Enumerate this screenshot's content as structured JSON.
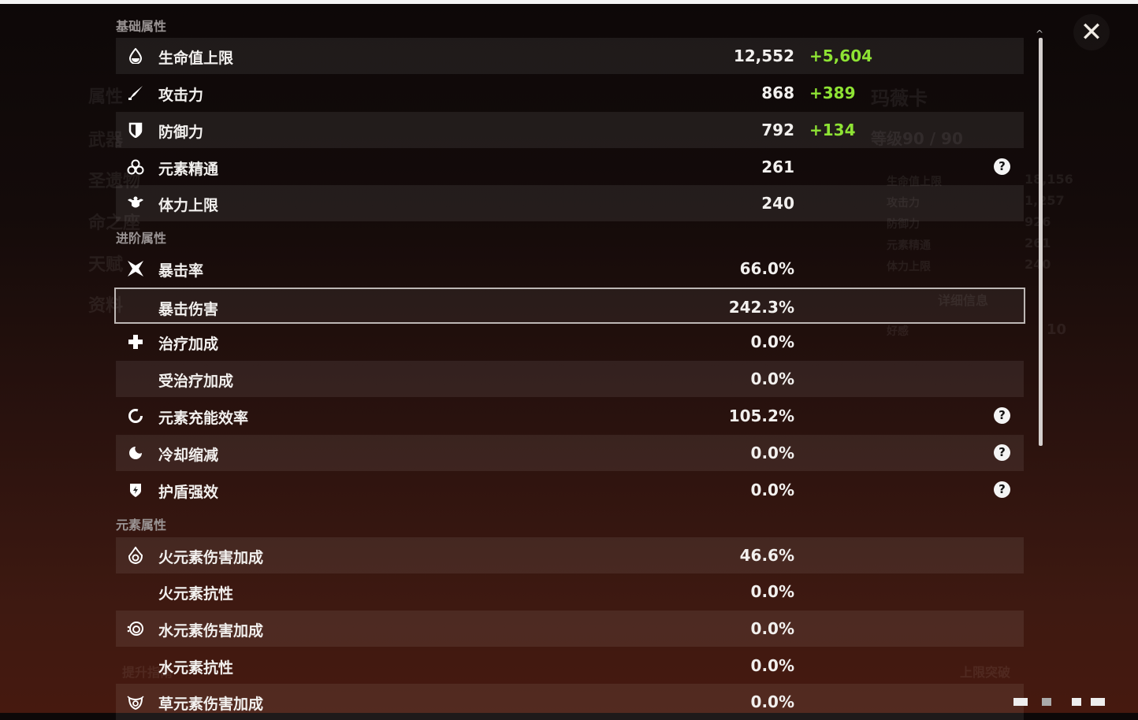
{
  "background": {
    "left_menu": [
      "属性",
      "武器",
      "圣遗物",
      "命之座",
      "天赋",
      "资料"
    ],
    "character_name": "玛薇卡",
    "level": "等级90 / 90",
    "side_stats": [
      {
        "label": "生命值上限",
        "value": "18,156"
      },
      {
        "label": "攻击力",
        "value": "1,257"
      },
      {
        "label": "防御力",
        "value": "926"
      },
      {
        "label": "元素精通",
        "value": "261"
      },
      {
        "label": "体力上限",
        "value": "240"
      }
    ],
    "details_button": "详细信息",
    "friendship": {
      "label": "好感",
      "value": "10"
    },
    "breakthrough_button": "上限突破",
    "improve_button": "提升指南"
  },
  "sections": [
    {
      "title": "基础属性",
      "rows": [
        {
          "icon": "hp-drop-icon",
          "label": "生命值上限",
          "value": "12,552",
          "bonus": "+5,604",
          "help": false
        },
        {
          "icon": "sword-icon",
          "label": "攻击力",
          "value": "868",
          "bonus": "+389",
          "help": false
        },
        {
          "icon": "shield-icon",
          "label": "防御力",
          "value": "792",
          "bonus": "+134",
          "help": false
        },
        {
          "icon": "elemental-mastery-icon",
          "label": "元素精通",
          "value": "261",
          "bonus": "",
          "help": true
        },
        {
          "icon": "stamina-icon",
          "label": "体力上限",
          "value": "240",
          "bonus": "",
          "help": false
        }
      ]
    },
    {
      "title": "进阶属性",
      "rows": [
        {
          "icon": "crit-rate-icon",
          "label": "暴击率",
          "value": "66.0%",
          "bonus": "",
          "help": false
        },
        {
          "icon": "",
          "label": "暴击伤害",
          "value": "242.3%",
          "bonus": "",
          "help": false,
          "selected": true
        },
        {
          "icon": "healing-cross-icon",
          "label": "治疗加成",
          "value": "0.0%",
          "bonus": "",
          "help": false
        },
        {
          "icon": "",
          "label": "受治疗加成",
          "value": "0.0%",
          "bonus": "",
          "help": false
        },
        {
          "icon": "energy-recharge-icon",
          "label": "元素充能效率",
          "value": "105.2%",
          "bonus": "",
          "help": true
        },
        {
          "icon": "cooldown-icon",
          "label": "冷却缩减",
          "value": "0.0%",
          "bonus": "",
          "help": true
        },
        {
          "icon": "shield-strength-icon",
          "label": "护盾强效",
          "value": "0.0%",
          "bonus": "",
          "help": true
        }
      ]
    },
    {
      "title": "元素属性",
      "rows": [
        {
          "icon": "pyro-icon",
          "label": "火元素伤害加成",
          "value": "46.6%",
          "bonus": "",
          "help": false
        },
        {
          "icon": "",
          "label": "火元素抗性",
          "value": "0.0%",
          "bonus": "",
          "help": false
        },
        {
          "icon": "hydro-icon",
          "label": "水元素伤害加成",
          "value": "0.0%",
          "bonus": "",
          "help": false
        },
        {
          "icon": "",
          "label": "水元素抗性",
          "value": "0.0%",
          "bonus": "",
          "help": false
        },
        {
          "icon": "dendro-icon",
          "label": "草元素伤害加成",
          "value": "0.0%",
          "bonus": "",
          "help": false
        }
      ]
    }
  ],
  "help_glyph": "?",
  "close_glyph": "✕",
  "colors": {
    "bonus": "#8ee334",
    "accent_border": "#bdb7b5"
  }
}
